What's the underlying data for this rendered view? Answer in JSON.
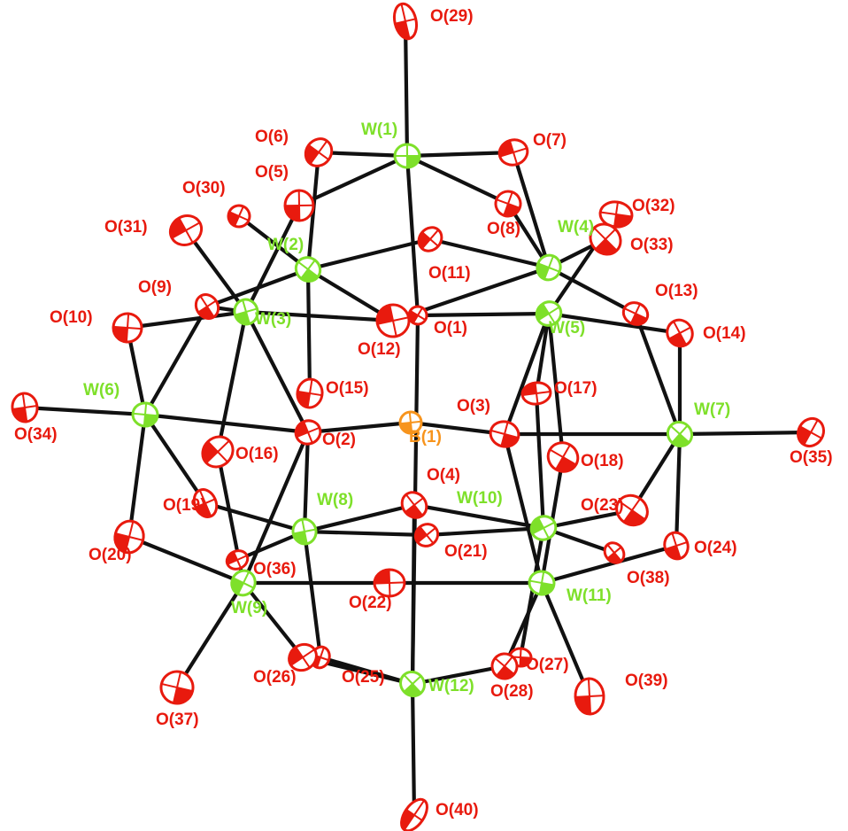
{
  "colors": {
    "tungsten": "#7ee02a",
    "oxygen": "#e81a0e",
    "boron": "#f7941d",
    "bond": "#111111",
    "outline": "#222222"
  },
  "atoms": [
    {
      "id": "W1",
      "label": "W(1)",
      "element": "W"
    },
    {
      "id": "W2",
      "label": "W(2)",
      "element": "W"
    },
    {
      "id": "W3",
      "label": "W(3)",
      "element": "W"
    },
    {
      "id": "W4",
      "label": "W(4)",
      "element": "W"
    },
    {
      "id": "W5",
      "label": "W(5)",
      "element": "W"
    },
    {
      "id": "W6",
      "label": "W(6)",
      "element": "W"
    },
    {
      "id": "W7",
      "label": "W(7)",
      "element": "W"
    },
    {
      "id": "W8",
      "label": "W(8)",
      "element": "W"
    },
    {
      "id": "W9",
      "label": "W(9)",
      "element": "W"
    },
    {
      "id": "W10",
      "label": "W(10)",
      "element": "W"
    },
    {
      "id": "W11",
      "label": "W(11)",
      "element": "W"
    },
    {
      "id": "W12",
      "label": "W(12)",
      "element": "W"
    },
    {
      "id": "B1",
      "label": "B(1)",
      "element": "B"
    },
    {
      "id": "O1",
      "label": "O(1)",
      "element": "O"
    },
    {
      "id": "O2",
      "label": "O(2)",
      "element": "O"
    },
    {
      "id": "O3",
      "label": "O(3)",
      "element": "O"
    },
    {
      "id": "O4",
      "label": "O(4)",
      "element": "O"
    },
    {
      "id": "O5",
      "label": "O(5)",
      "element": "O"
    },
    {
      "id": "O6",
      "label": "O(6)",
      "element": "O"
    },
    {
      "id": "O7",
      "label": "O(7)",
      "element": "O"
    },
    {
      "id": "O8",
      "label": "O(8)",
      "element": "O"
    },
    {
      "id": "O9",
      "label": "O(9)",
      "element": "O"
    },
    {
      "id": "O10",
      "label": "O(10)",
      "element": "O"
    },
    {
      "id": "O11",
      "label": "O(11)",
      "element": "O"
    },
    {
      "id": "O12",
      "label": "O(12)",
      "element": "O"
    },
    {
      "id": "O13",
      "label": "O(13)",
      "element": "O"
    },
    {
      "id": "O14",
      "label": "O(14)",
      "element": "O"
    },
    {
      "id": "O15",
      "label": "O(15)",
      "element": "O"
    },
    {
      "id": "O16",
      "label": "O(16)",
      "element": "O"
    },
    {
      "id": "O17",
      "label": "O(17)",
      "element": "O"
    },
    {
      "id": "O18",
      "label": "O(18)",
      "element": "O"
    },
    {
      "id": "O19",
      "label": "O(19)",
      "element": "O"
    },
    {
      "id": "O20",
      "label": "O(20)",
      "element": "O"
    },
    {
      "id": "O21",
      "label": "O(21)",
      "element": "O"
    },
    {
      "id": "O22",
      "label": "O(22)",
      "element": "O"
    },
    {
      "id": "O23",
      "label": "O(23)",
      "element": "O"
    },
    {
      "id": "O24",
      "label": "O(24)",
      "element": "O"
    },
    {
      "id": "O25",
      "label": "O(25)",
      "element": "O"
    },
    {
      "id": "O26",
      "label": "O(26)",
      "element": "O"
    },
    {
      "id": "O27",
      "label": "O(27)",
      "element": "O"
    },
    {
      "id": "O28",
      "label": "O(28)",
      "element": "O"
    },
    {
      "id": "O29",
      "label": "O(29)",
      "element": "O"
    },
    {
      "id": "O30",
      "label": "O(30)",
      "element": "O"
    },
    {
      "id": "O31",
      "label": "O(31)",
      "element": "O"
    },
    {
      "id": "O32",
      "label": "O(32)",
      "element": "O"
    },
    {
      "id": "O33",
      "label": "O(33)",
      "element": "O"
    },
    {
      "id": "O34",
      "label": "O(34)",
      "element": "O"
    },
    {
      "id": "O35",
      "label": "O(35)",
      "element": "O"
    },
    {
      "id": "O36",
      "label": "O(36)",
      "element": "O"
    },
    {
      "id": "O37",
      "label": "O(37)",
      "element": "O"
    },
    {
      "id": "O38",
      "label": "O(38)",
      "element": "O"
    },
    {
      "id": "O39",
      "label": "O(39)",
      "element": "O"
    },
    {
      "id": "O40",
      "label": "O(40)",
      "element": "O"
    }
  ],
  "bonds": [
    [
      "W1",
      "O29"
    ],
    [
      "W1",
      "O6"
    ],
    [
      "W1",
      "O7"
    ],
    [
      "W1",
      "O5"
    ],
    [
      "W1",
      "O8"
    ],
    [
      "W1",
      "O1"
    ],
    [
      "W2",
      "O6"
    ],
    [
      "W2",
      "O30"
    ],
    [
      "W2",
      "O11"
    ],
    [
      "W2",
      "O12"
    ],
    [
      "W2",
      "O15"
    ],
    [
      "W2",
      "O9"
    ],
    [
      "W3",
      "O31"
    ],
    [
      "W3",
      "O5"
    ],
    [
      "W3",
      "O9"
    ],
    [
      "W3",
      "O12"
    ],
    [
      "W3",
      "O16"
    ],
    [
      "W3",
      "O2"
    ],
    [
      "W4",
      "O7"
    ],
    [
      "W4",
      "O33"
    ],
    [
      "W4",
      "O11"
    ],
    [
      "W4",
      "O12"
    ],
    [
      "W4",
      "O8"
    ],
    [
      "W4",
      "O13"
    ],
    [
      "W5",
      "O32"
    ],
    [
      "W5",
      "O1"
    ],
    [
      "W5",
      "O14"
    ],
    [
      "W5",
      "O3"
    ],
    [
      "W5",
      "O17"
    ],
    [
      "W5",
      "O18"
    ],
    [
      "W6",
      "O34"
    ],
    [
      "W6",
      "O10"
    ],
    [
      "W6",
      "O9"
    ],
    [
      "W6",
      "O2"
    ],
    [
      "W6",
      "O19"
    ],
    [
      "W6",
      "O20"
    ],
    [
      "W7",
      "O35"
    ],
    [
      "W7",
      "O14"
    ],
    [
      "W7",
      "O13"
    ],
    [
      "W7",
      "O3"
    ],
    [
      "W7",
      "O23"
    ],
    [
      "W7",
      "O24"
    ],
    [
      "W8",
      "O19"
    ],
    [
      "W8",
      "O4"
    ],
    [
      "W8",
      "O21"
    ],
    [
      "W8",
      "O2"
    ],
    [
      "W8",
      "O25"
    ],
    [
      "W8",
      "O36"
    ],
    [
      "W9",
      "O20"
    ],
    [
      "W9",
      "O16"
    ],
    [
      "W9",
      "O22"
    ],
    [
      "W9",
      "O26"
    ],
    [
      "W9",
      "O37"
    ],
    [
      "W9",
      "O2"
    ],
    [
      "W10",
      "O4"
    ],
    [
      "W10",
      "O21"
    ],
    [
      "W10",
      "O17"
    ],
    [
      "W10",
      "O23"
    ],
    [
      "W10",
      "O38"
    ],
    [
      "W10",
      "O27"
    ],
    [
      "W11",
      "O22"
    ],
    [
      "W11",
      "O24"
    ],
    [
      "W11",
      "O39"
    ],
    [
      "W11",
      "O3"
    ],
    [
      "W11",
      "O18"
    ],
    [
      "W11",
      "O28"
    ],
    [
      "W12",
      "O40"
    ],
    [
      "W12",
      "O25"
    ],
    [
      "W12",
      "O26"
    ],
    [
      "W12",
      "O28"
    ],
    [
      "W12",
      "O4"
    ],
    [
      "W12",
      "O1"
    ],
    [
      "W3",
      "O10"
    ],
    [
      "B1",
      "O2"
    ],
    [
      "B1",
      "O3"
    ]
  ]
}
